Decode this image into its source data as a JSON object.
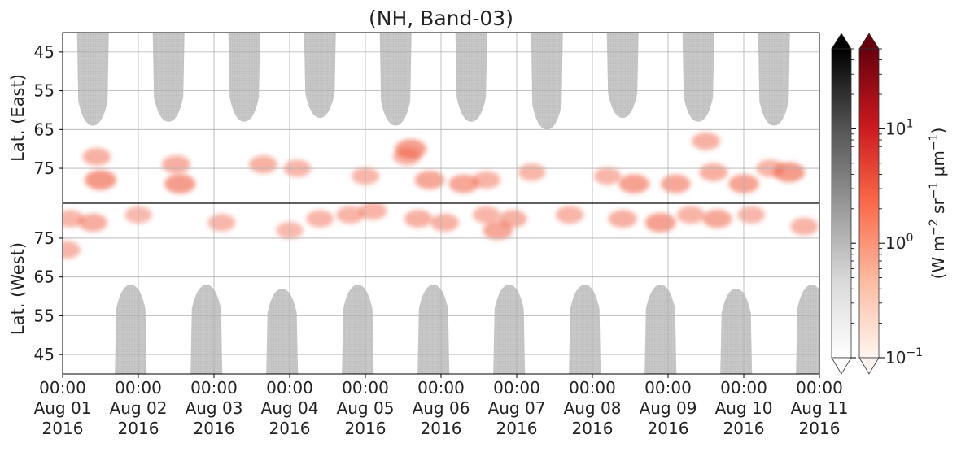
{
  "chart_data": {
    "type": "heatmap",
    "title": "(NH, Band-03)",
    "panels": [
      {
        "name": "east",
        "ylabel": "Lat. (East)",
        "yticks": [
          45,
          55,
          65,
          75
        ]
      },
      {
        "name": "west",
        "ylabel": "Lat. (West)",
        "yticks": [
          75,
          65,
          55,
          45
        ]
      }
    ],
    "xticks": [
      {
        "time": "00:00",
        "date": "Aug 01",
        "year": "2016"
      },
      {
        "time": "00:00",
        "date": "Aug 02",
        "year": "2016"
      },
      {
        "time": "00:00",
        "date": "Aug 03",
        "year": "2016"
      },
      {
        "time": "00:00",
        "date": "Aug 04",
        "year": "2016"
      },
      {
        "time": "00:00",
        "date": "Aug 05",
        "year": "2016"
      },
      {
        "time": "00:00",
        "date": "Aug 06",
        "year": "2016"
      },
      {
        "time": "00:00",
        "date": "Aug 07",
        "year": "2016"
      },
      {
        "time": "00:00",
        "date": "Aug 08",
        "year": "2016"
      },
      {
        "time": "00:00",
        "date": "Aug 09",
        "year": "2016"
      },
      {
        "time": "00:00",
        "date": "Aug 10",
        "year": "2016"
      },
      {
        "time": "00:00",
        "date": "Aug 11",
        "year": "2016"
      }
    ],
    "xlim": [
      "Aug 01 2016 00:00",
      "Aug 11 2016 00:00"
    ],
    "grid": true,
    "colorbar": {
      "scale": "log",
      "range": [
        0.1,
        50
      ],
      "tick_base": "10",
      "tick_exponents": [
        "1",
        "0",
        "−1"
      ],
      "label_parts": [
        "(W m",
        "−2",
        " sr",
        "−1",
        " μm",
        "−1",
        ")"
      ],
      "cmaps": [
        {
          "name": "Greys",
          "colors": [
            "#ffffff",
            "#d9d9d9",
            "#969696",
            "#525252",
            "#000000"
          ]
        },
        {
          "name": "Reds",
          "colors": [
            "#fff5f0",
            "#fcbba1",
            "#fb6a4a",
            "#cb181d",
            "#67000d"
          ]
        }
      ]
    },
    "colors": {
      "daylight_mask": "#c8c8c8",
      "aurora": "#ef5a3c",
      "grid": "#b0b0b0"
    },
    "daylight_mask_east": [
      {
        "day": 0.4,
        "min_lat": 64
      },
      {
        "day": 1.4,
        "min_lat": 63
      },
      {
        "day": 2.4,
        "min_lat": 63
      },
      {
        "day": 3.4,
        "min_lat": 62
      },
      {
        "day": 4.4,
        "min_lat": 64
      },
      {
        "day": 5.4,
        "min_lat": 63
      },
      {
        "day": 6.4,
        "min_lat": 65
      },
      {
        "day": 7.4,
        "min_lat": 62
      },
      {
        "day": 8.4,
        "min_lat": 63
      },
      {
        "day": 9.4,
        "min_lat": 64
      }
    ],
    "daylight_mask_west": [
      {
        "day": 0.9,
        "min_lat": 63
      },
      {
        "day": 1.9,
        "min_lat": 63
      },
      {
        "day": 2.9,
        "min_lat": 62
      },
      {
        "day": 3.9,
        "min_lat": 63
      },
      {
        "day": 4.9,
        "min_lat": 63
      },
      {
        "day": 5.9,
        "min_lat": 63
      },
      {
        "day": 6.9,
        "min_lat": 63
      },
      {
        "day": 7.9,
        "min_lat": 63
      },
      {
        "day": 8.9,
        "min_lat": 62
      },
      {
        "day": 9.9,
        "min_lat": 63
      }
    ],
    "aurora_patches": [
      {
        "panel": "east",
        "day": 0.5,
        "lat": 78,
        "value": 3.0
      },
      {
        "panel": "east",
        "day": 0.45,
        "lat": 72,
        "value": 0.8
      },
      {
        "panel": "east",
        "day": 1.55,
        "lat": 79,
        "value": 2.5
      },
      {
        "panel": "east",
        "day": 1.5,
        "lat": 74,
        "value": 0.9
      },
      {
        "panel": "east",
        "day": 2.65,
        "lat": 74,
        "value": 0.8
      },
      {
        "panel": "east",
        "day": 3.1,
        "lat": 75,
        "value": 0.6
      },
      {
        "panel": "east",
        "day": 4.0,
        "lat": 77,
        "value": 0.6
      },
      {
        "panel": "east",
        "day": 4.55,
        "lat": 72,
        "value": 0.7
      },
      {
        "panel": "east",
        "day": 4.85,
        "lat": 78,
        "value": 1.5
      },
      {
        "panel": "east",
        "day": 4.6,
        "lat": 70,
        "value": 2.5
      },
      {
        "panel": "east",
        "day": 5.3,
        "lat": 79,
        "value": 1.5
      },
      {
        "panel": "east",
        "day": 5.6,
        "lat": 78,
        "value": 0.7
      },
      {
        "panel": "east",
        "day": 6.2,
        "lat": 76,
        "value": 0.6
      },
      {
        "panel": "east",
        "day": 7.2,
        "lat": 77,
        "value": 0.6
      },
      {
        "panel": "east",
        "day": 7.55,
        "lat": 79,
        "value": 2.0
      },
      {
        "panel": "east",
        "day": 8.1,
        "lat": 79,
        "value": 1.5
      },
      {
        "panel": "east",
        "day": 8.6,
        "lat": 76,
        "value": 0.9
      },
      {
        "panel": "east",
        "day": 8.5,
        "lat": 68,
        "value": 0.8
      },
      {
        "panel": "east",
        "day": 9.0,
        "lat": 79,
        "value": 1.8
      },
      {
        "panel": "east",
        "day": 9.6,
        "lat": 76,
        "value": 2.8
      },
      {
        "panel": "east",
        "day": 9.35,
        "lat": 75,
        "value": 0.7
      },
      {
        "panel": "west",
        "day": 0.1,
        "lat": 80,
        "value": 0.6
      },
      {
        "panel": "west",
        "day": 0.05,
        "lat": 72,
        "value": 0.7
      },
      {
        "panel": "west",
        "day": 0.4,
        "lat": 79,
        "value": 1.0
      },
      {
        "panel": "west",
        "day": 1.0,
        "lat": 81,
        "value": 0.5
      },
      {
        "panel": "west",
        "day": 2.1,
        "lat": 79,
        "value": 0.6
      },
      {
        "panel": "west",
        "day": 3.0,
        "lat": 77,
        "value": 0.5
      },
      {
        "panel": "west",
        "day": 3.4,
        "lat": 80,
        "value": 0.6
      },
      {
        "panel": "west",
        "day": 3.8,
        "lat": 81,
        "value": 0.7
      },
      {
        "panel": "west",
        "day": 4.1,
        "lat": 82,
        "value": 0.7
      },
      {
        "panel": "west",
        "day": 4.7,
        "lat": 80,
        "value": 0.8
      },
      {
        "panel": "west",
        "day": 5.05,
        "lat": 79,
        "value": 0.8
      },
      {
        "panel": "west",
        "day": 5.6,
        "lat": 81,
        "value": 0.6
      },
      {
        "panel": "west",
        "day": 5.75,
        "lat": 77,
        "value": 1.5
      },
      {
        "panel": "west",
        "day": 5.95,
        "lat": 80,
        "value": 0.8
      },
      {
        "panel": "west",
        "day": 6.7,
        "lat": 81,
        "value": 0.7
      },
      {
        "panel": "west",
        "day": 7.4,
        "lat": 80,
        "value": 0.9
      },
      {
        "panel": "west",
        "day": 7.9,
        "lat": 79,
        "value": 2.2
      },
      {
        "panel": "west",
        "day": 8.3,
        "lat": 81,
        "value": 0.7
      },
      {
        "panel": "west",
        "day": 8.65,
        "lat": 80,
        "value": 1.3
      },
      {
        "panel": "west",
        "day": 9.1,
        "lat": 81,
        "value": 0.6
      },
      {
        "panel": "west",
        "day": 9.8,
        "lat": 78,
        "value": 0.7
      }
    ]
  }
}
